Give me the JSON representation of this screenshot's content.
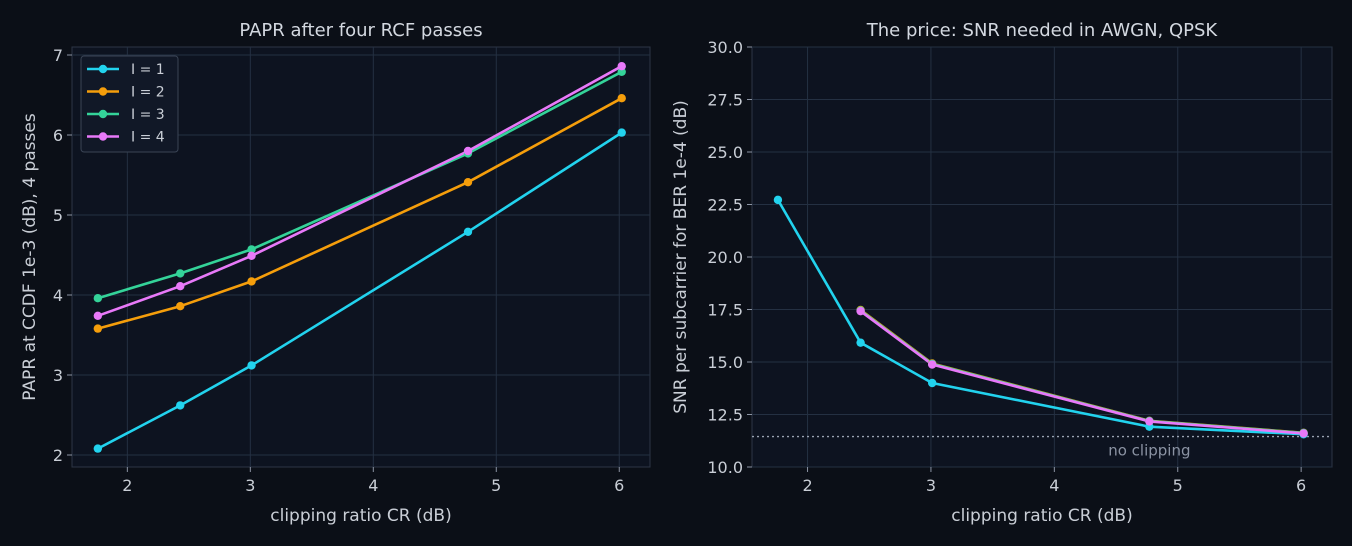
{
  "chart_data": [
    {
      "type": "line",
      "title": "PAPR after four RCF passes",
      "xlabel": "clipping ratio CR (dB)",
      "ylabel": "PAPR at CCDF 1e-3 (dB), 4 passes",
      "xlim": [
        1.55,
        6.25
      ],
      "ylim": [
        1.85,
        7.1
      ],
      "xticks": [
        2,
        3,
        4,
        5,
        6
      ],
      "yticks": [
        2,
        3,
        4,
        5,
        6,
        7
      ],
      "grid": true,
      "legend": "top-left",
      "series": [
        {
          "name": "I = 1",
          "color": "#22d3ee",
          "x": [
            1.76,
            2.43,
            3.01,
            4.77,
            6.02
          ],
          "y": [
            2.08,
            2.62,
            3.12,
            4.79,
            6.03
          ]
        },
        {
          "name": "I = 2",
          "color": "#f59e0b",
          "x": [
            1.76,
            2.43,
            3.01,
            4.77,
            6.02
          ],
          "y": [
            3.58,
            3.86,
            4.17,
            5.41,
            6.46
          ]
        },
        {
          "name": "I = 3",
          "color": "#34d399",
          "x": [
            1.76,
            2.43,
            3.01,
            4.77,
            6.02
          ],
          "y": [
            3.96,
            4.27,
            4.57,
            5.77,
            6.79
          ]
        },
        {
          "name": "I = 4",
          "color": "#e879f9",
          "x": [
            1.76,
            2.43,
            3.01,
            4.77,
            6.02
          ],
          "y": [
            3.74,
            4.11,
            4.49,
            5.8,
            6.86
          ]
        }
      ]
    },
    {
      "type": "line",
      "title": "The price: SNR needed in AWGN, QPSK",
      "xlabel": "clipping ratio CR (dB)",
      "ylabel": "SNR per subcarrier for BER 1e-4 (dB)",
      "xlim": [
        1.55,
        6.25
      ],
      "ylim": [
        10.0,
        30.0
      ],
      "xticks": [
        2,
        3,
        4,
        5,
        6
      ],
      "yticks": [
        10.0,
        12.5,
        15.0,
        17.5,
        20.0,
        22.5,
        25.0,
        27.5,
        30.0
      ],
      "grid": true,
      "reference_line": {
        "y": 11.45,
        "label": "no clipping",
        "color": "#9aa3b2"
      },
      "series": [
        {
          "color": "#22d3ee",
          "x": [
            1.76,
            2.43,
            3.01,
            4.77,
            6.02
          ],
          "y": [
            22.72,
            15.92,
            14.0,
            11.92,
            11.56
          ]
        },
        {
          "color": "#f59e0b",
          "x": [
            2.43,
            3.01,
            4.77,
            6.02
          ],
          "y": [
            17.48,
            14.93,
            12.2,
            11.63
          ]
        },
        {
          "color": "#34d399",
          "x": [
            2.43,
            3.01,
            4.77,
            6.02
          ],
          "y": [
            17.45,
            14.91,
            12.19,
            11.62
          ]
        },
        {
          "color": "#e879f9",
          "x": [
            2.43,
            3.01,
            4.77,
            6.02
          ],
          "y": [
            17.42,
            14.88,
            12.17,
            11.6
          ]
        }
      ]
    }
  ]
}
